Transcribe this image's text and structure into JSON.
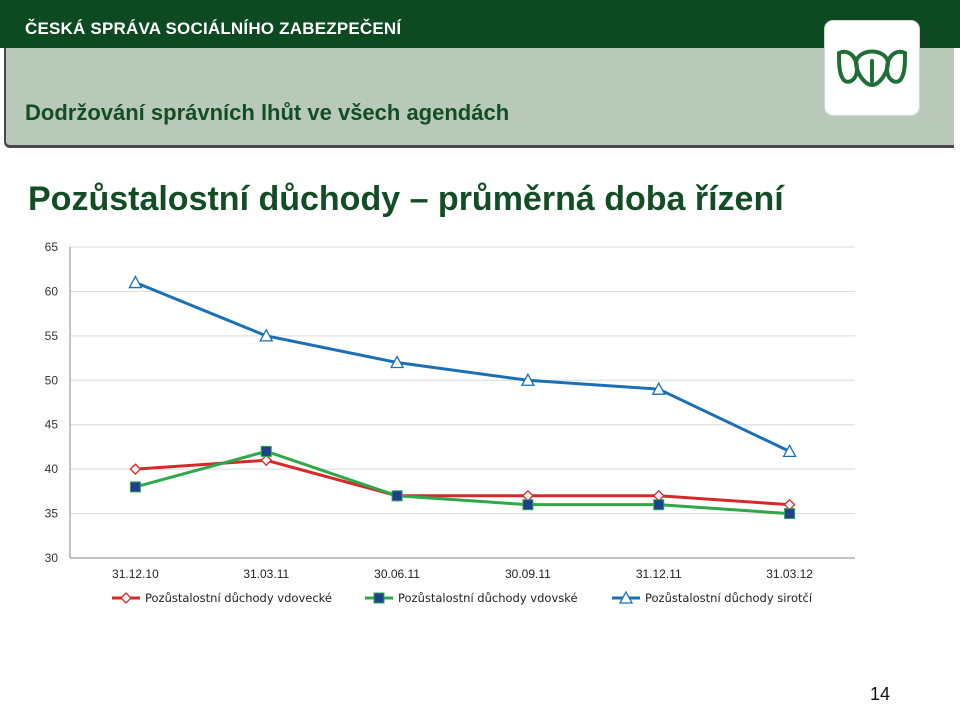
{
  "header": {
    "org_name": "ČESKÁ SPRÁVA SOCIÁLNÍHO ZABEZPEČENÍ",
    "agenda_title": "Dodržování správních lhůt ve všech agendách",
    "logo_icon": "cssz-leaf-logo-icon"
  },
  "slide": {
    "title": "Pozůstalostní důchody – průměrná doba řízení",
    "page_number": "14"
  },
  "colors": {
    "header_green": "#0d4a22",
    "band_gray_green": "#b8c9b9",
    "title_green": "#124d25"
  },
  "chart_data": {
    "type": "line",
    "title": "",
    "xlabel": "",
    "ylabel": "",
    "categories": [
      "31.12.10",
      "31.03.11",
      "30.06.11",
      "30.09.11",
      "31.12.11",
      "31.03.12"
    ],
    "ylim": [
      30,
      65
    ],
    "yticks": [
      30,
      35,
      40,
      45,
      50,
      55,
      60,
      65
    ],
    "grid": true,
    "legend_position": "bottom",
    "series": [
      {
        "name": "Pozůstalostní důchody vdovecké",
        "values": [
          40,
          41,
          37,
          37,
          37,
          36
        ],
        "color": "#d42a2a",
        "marker": "diamond"
      },
      {
        "name": "Pozůstalostní důchody vdovské",
        "values": [
          38,
          42,
          37,
          36,
          36,
          35
        ],
        "color": "#2fa84a",
        "marker": "square"
      },
      {
        "name": "Pozůstalostní důchody sirotčí",
        "values": [
          61,
          55,
          52,
          50,
          49,
          42
        ],
        "color": "#1a6fb5",
        "marker": "triangle"
      }
    ]
  }
}
